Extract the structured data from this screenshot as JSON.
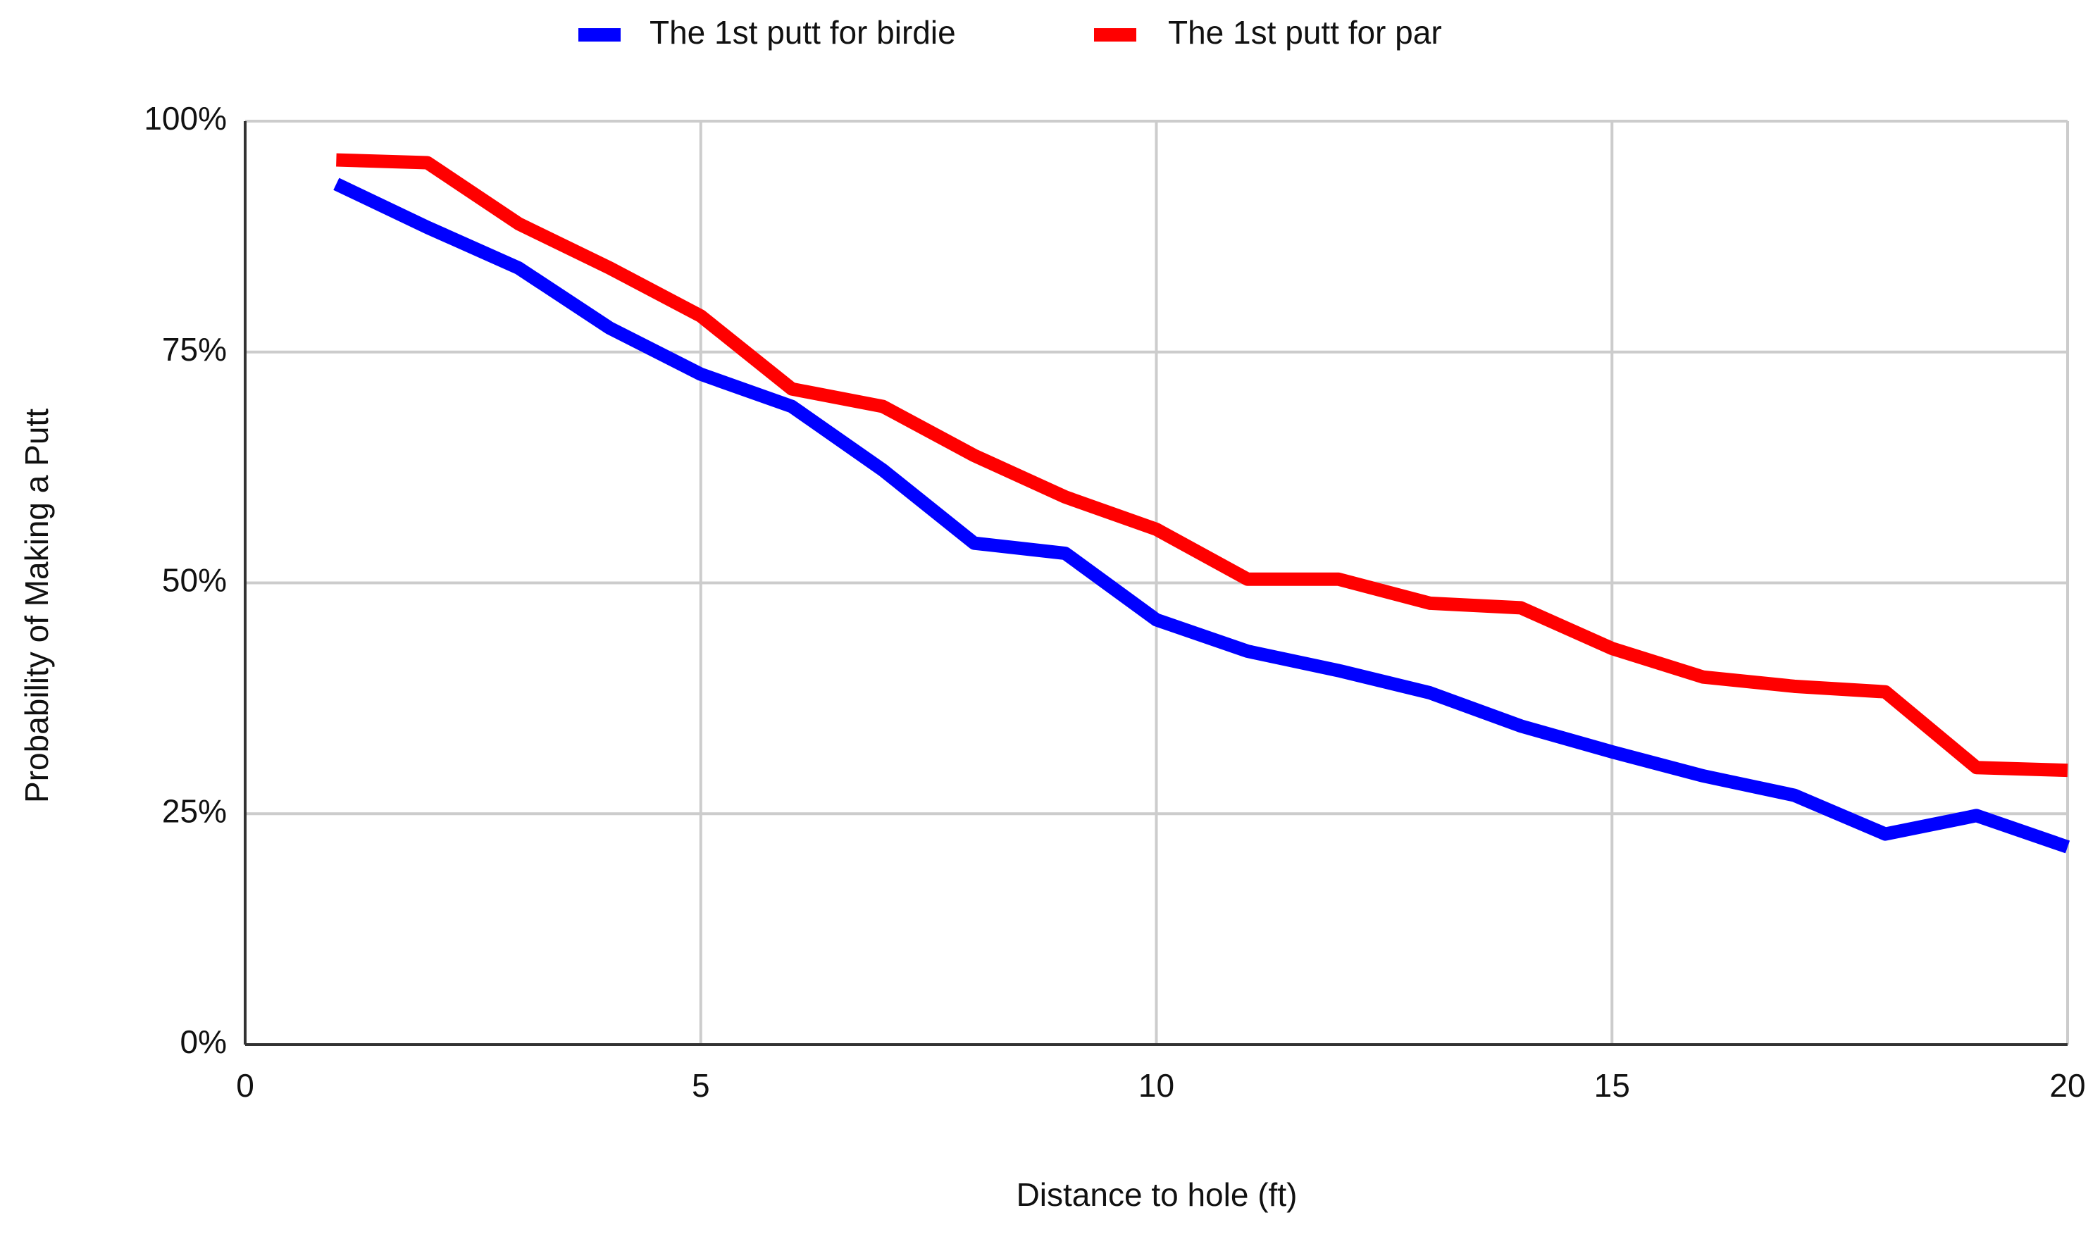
{
  "chart_data": {
    "type": "line",
    "x_label": "Distance to hole (ft)",
    "y_label": "Probability of Making a Putt",
    "x": [
      1,
      2,
      3,
      4,
      5,
      6,
      7,
      8,
      9,
      10,
      11,
      12,
      13,
      14,
      15,
      16,
      17,
      18,
      19,
      20
    ],
    "series": [
      {
        "name": "The 1st putt for birdie",
        "color": "#0000ff",
        "values": [
          93.2,
          88.5,
          84.1,
          77.6,
          72.6,
          69.1,
          62.2,
          54.3,
          53.2,
          46.0,
          42.6,
          40.5,
          38.1,
          34.5,
          31.7,
          29.1,
          27.0,
          22.8,
          24.8,
          21.4
        ]
      },
      {
        "name": "The 1st putt for par",
        "color": "#ff0000",
        "values": [
          95.8,
          95.5,
          88.9,
          84.1,
          78.9,
          71.0,
          69.1,
          63.8,
          59.3,
          55.8,
          50.4,
          50.4,
          47.8,
          47.3,
          42.9,
          39.8,
          38.8,
          38.2,
          30.0,
          29.7
        ]
      }
    ],
    "xlim": [
      0,
      20
    ],
    "xticks": [
      0,
      5,
      10,
      15,
      20
    ],
    "ylim": [
      0,
      100
    ],
    "yticks": [
      {
        "value": 0,
        "label": "0%"
      },
      {
        "value": 25,
        "label": "25%"
      },
      {
        "value": 50,
        "label": "50%"
      },
      {
        "value": 75,
        "label": "75%"
      },
      {
        "value": 100,
        "label": "100%"
      }
    ],
    "grid": true,
    "legend": "top"
  }
}
